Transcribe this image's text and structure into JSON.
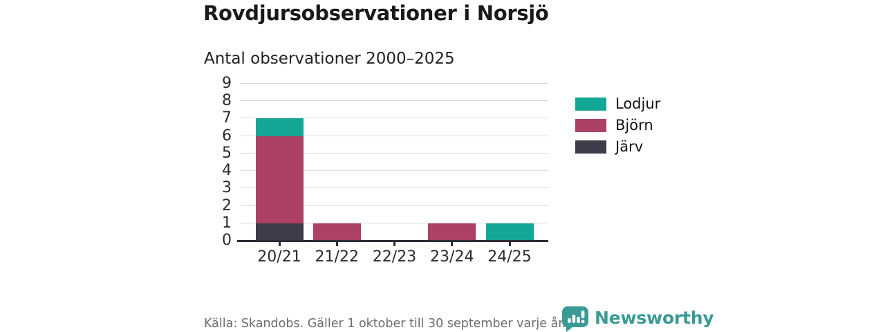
{
  "header": {
    "title": "Rovdjursobservationer i Norsjö",
    "subtitle": "Antal observationer 2000–2025"
  },
  "chart_data": {
    "type": "bar",
    "stacked": true,
    "title": "Rovdjursobservationer i Norsjö",
    "subtitle": "Antal observationer 2000–2025",
    "categories": [
      "20/21",
      "21/22",
      "22/23",
      "23/24",
      "24/25"
    ],
    "series": [
      {
        "name": "Lodjur",
        "color": "#14a796",
        "values": [
          1,
          0,
          0,
          0,
          1
        ]
      },
      {
        "name": "Björn",
        "color": "#ad4163",
        "values": [
          5,
          1,
          0,
          1,
          0
        ]
      },
      {
        "name": "Järv",
        "color": "#3e3b4a",
        "values": [
          1,
          0,
          0,
          0,
          0
        ]
      }
    ],
    "stack_order_bottom_to_top": [
      "Järv",
      "Björn",
      "Lodjur"
    ],
    "totals": [
      7,
      1,
      0,
      1,
      1
    ],
    "xlabel": "",
    "ylabel": "",
    "ylim": [
      0,
      9
    ],
    "yticks": [
      0,
      1,
      2,
      3,
      4,
      5,
      6,
      7,
      8,
      9
    ],
    "grid": "horizontal",
    "legend_position": "right"
  },
  "legend": {
    "items": [
      {
        "label": "Lodjur",
        "color": "#14a796"
      },
      {
        "label": "Björn",
        "color": "#ad4163"
      },
      {
        "label": "Järv",
        "color": "#3e3b4a"
      }
    ]
  },
  "footer": {
    "source": "Källa: Skandobs. Gäller 1 oktober till 30 september varje år.",
    "brand": "Newsworthy"
  },
  "colors": {
    "axis": "#2e2d36",
    "grid": "#dbdbdb",
    "text": "#2b2b2b",
    "muted_text": "#6b6b6b",
    "brand_teal": "#3a9a94"
  }
}
